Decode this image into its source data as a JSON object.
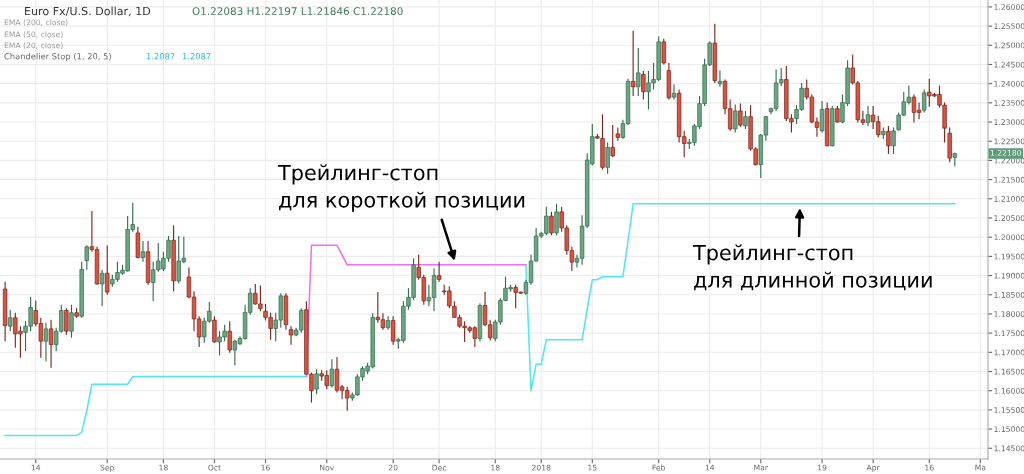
{
  "chart_data": {
    "type": "candlestick",
    "title": "Euro Fx/U.S. Dollar, 1D",
    "categories": [
      null,
      null,
      null,
      null,
      null,
      null,
      "14",
      null,
      null,
      null,
      null,
      null,
      null,
      null,
      null,
      null,
      null,
      null,
      null,
      null,
      "Sep",
      null,
      null,
      null,
      null,
      null,
      null,
      null,
      null,
      null,
      null,
      "18",
      null,
      null,
      null,
      null,
      null,
      null,
      null,
      null,
      null,
      "Oct",
      null,
      null,
      null,
      null,
      null,
      null,
      null,
      null,
      null,
      "16",
      null,
      null,
      null,
      null,
      null,
      null,
      null,
      null,
      null,
      null,
      null,
      "Nov",
      null,
      null,
      null,
      null,
      null,
      null,
      null,
      null,
      null,
      null,
      null,
      null,
      "20",
      null,
      null,
      null,
      null,
      null,
      null,
      null,
      null,
      "Dec",
      null,
      null,
      null,
      null,
      null,
      null,
      null,
      null,
      null,
      null,
      "18",
      null,
      null,
      null,
      null,
      null,
      null,
      null,
      null,
      "2018",
      null,
      null,
      null,
      null,
      null,
      null,
      null,
      null,
      null,
      "15",
      null,
      null,
      null,
      null,
      null,
      null,
      null,
      null,
      null,
      null,
      null,
      null,
      "Feb",
      null,
      null,
      null,
      null,
      null,
      null,
      null,
      null,
      null,
      "14",
      null,
      null,
      null,
      null,
      null,
      null,
      null,
      null,
      null,
      "Mar",
      null,
      null,
      null,
      null,
      null,
      null,
      null,
      null,
      null,
      null,
      null,
      "19",
      null,
      null,
      null,
      null,
      null,
      null,
      null,
      null,
      null,
      "Apr",
      null,
      null,
      null,
      null,
      null,
      null,
      null,
      null,
      null,
      null,
      "16",
      null,
      null,
      null,
      null,
      null,
      null,
      null,
      null,
      null,
      "Ma",
      null
    ],
    "ohlc": [
      [
        1.1865,
        1.1884,
        1.1729,
        1.177
      ],
      [
        1.1768,
        1.1811,
        1.1755,
        1.179
      ],
      [
        1.179,
        1.1803,
        1.1712,
        1.1748
      ],
      [
        1.1755,
        1.1768,
        1.1686,
        1.1748
      ],
      [
        1.1752,
        1.1781,
        1.1703,
        1.1768
      ],
      [
        1.1768,
        1.1844,
        1.1755,
        1.1817
      ],
      [
        1.1809,
        1.1835,
        1.1768,
        1.1774
      ],
      [
        1.1775,
        1.179,
        1.1686,
        1.1729
      ],
      [
        1.1729,
        1.1777,
        1.1677,
        1.1761
      ],
      [
        1.1761,
        1.1785,
        1.166,
        1.172
      ],
      [
        1.172,
        1.1764,
        1.1703,
        1.1755
      ],
      [
        1.1755,
        1.1824,
        1.1751,
        1.1809
      ],
      [
        1.1809,
        1.1815,
        1.1746,
        1.1755
      ],
      [
        1.1755,
        1.1824,
        1.1738,
        1.1803
      ],
      [
        1.1803,
        1.1815,
        1.179,
        1.1794
      ],
      [
        1.1794,
        1.1936,
        1.179,
        1.1916
      ],
      [
        1.1939,
        1.1979,
        1.1915,
        1.1975
      ],
      [
        1.1975,
        1.2068,
        1.1962,
        1.1968
      ],
      [
        1.1968,
        1.1975,
        1.1876,
        1.1878
      ],
      [
        1.1878,
        1.1915,
        1.182,
        1.1906
      ],
      [
        1.1906,
        1.1978,
        1.185,
        1.1857
      ],
      [
        1.1878,
        1.1902,
        1.1871,
        1.189
      ],
      [
        1.189,
        1.1936,
        1.1884,
        1.1908
      ],
      [
        1.1906,
        1.1928,
        1.1902,
        1.1914
      ],
      [
        1.1912,
        1.2055,
        1.191,
        1.202
      ],
      [
        1.202,
        1.209,
        1.2014,
        1.2033
      ],
      [
        1.2011,
        1.2027,
        1.1945,
        1.1947
      ],
      [
        1.1947,
        1.199,
        1.1936,
        1.1962
      ],
      [
        1.1962,
        1.199,
        1.1876,
        1.1882
      ],
      [
        1.1882,
        1.1936,
        1.1834,
        1.1915
      ],
      [
        1.1915,
        1.1985,
        1.191,
        1.1938
      ],
      [
        1.1917,
        1.1962,
        1.1912,
        1.1945
      ],
      [
        1.1945,
        1.2003,
        1.1936,
        1.1992
      ],
      [
        1.1992,
        1.2031,
        1.1859,
        1.1886
      ],
      [
        1.1886,
        1.2003,
        1.188,
        1.1938
      ],
      [
        1.1936,
        1.2001,
        1.1932,
        1.1945
      ],
      [
        1.1896,
        1.1921,
        1.1841,
        1.1844
      ],
      [
        1.1844,
        1.1859,
        1.1755,
        1.1787
      ],
      [
        1.1787,
        1.1794,
        1.1714,
        1.174
      ],
      [
        1.174,
        1.179,
        1.1725,
        1.1781
      ],
      [
        1.1781,
        1.1831,
        1.1777,
        1.1807
      ],
      [
        1.1784,
        1.1794,
        1.1725,
        1.1727
      ],
      [
        1.1727,
        1.1755,
        1.1692,
        1.174
      ],
      [
        1.174,
        1.1772,
        1.1729,
        1.1755
      ],
      [
        1.1755,
        1.1781,
        1.1699,
        1.1706
      ],
      [
        1.1706,
        1.1733,
        1.1666,
        1.1729
      ],
      [
        1.1722,
        1.1742,
        1.172,
        1.1736
      ],
      [
        1.1736,
        1.1824,
        1.1733,
        1.1804
      ],
      [
        1.1804,
        1.1867,
        1.1798,
        1.1854
      ],
      [
        1.1854,
        1.1878,
        1.1824,
        1.1826
      ],
      [
        1.1826,
        1.1874,
        1.1807,
        1.1814
      ],
      [
        1.1807,
        1.1826,
        1.1783,
        1.1791
      ],
      [
        1.1791,
        1.1803,
        1.1733,
        1.1762
      ],
      [
        1.1762,
        1.1803,
        1.1729,
        1.1784
      ],
      [
        1.1784,
        1.1854,
        1.1764,
        1.1847
      ],
      [
        1.1847,
        1.1854,
        1.1759,
        1.1772
      ],
      [
        1.1759,
        1.1768,
        1.172,
        1.1745
      ],
      [
        1.1745,
        1.1764,
        1.1742,
        1.1758
      ],
      [
        1.1758,
        1.1815,
        1.1751,
        1.1809
      ],
      [
        1.1811,
        1.1833,
        1.1643,
        1.1643
      ],
      [
        1.1643,
        1.1647,
        1.1569,
        1.16
      ],
      [
        1.1604,
        1.1656,
        1.1591,
        1.1644
      ],
      [
        1.1644,
        1.1653,
        1.1626,
        1.1638
      ],
      [
        1.164,
        1.1653,
        1.1604,
        1.1613
      ],
      [
        1.1613,
        1.1682,
        1.1608,
        1.1656
      ],
      [
        1.1656,
        1.1688,
        1.1595,
        1.1601
      ],
      [
        1.161,
        1.1615,
        1.1578,
        1.1601
      ],
      [
        1.1601,
        1.161,
        1.1548,
        1.1581
      ],
      [
        1.1581,
        1.1595,
        1.1574,
        1.1589
      ],
      [
        1.1589,
        1.1643,
        1.1587,
        1.1636
      ],
      [
        1.1636,
        1.1664,
        1.1626,
        1.1658
      ],
      [
        1.1651,
        1.1673,
        1.1643,
        1.1664
      ],
      [
        1.1662,
        1.1802,
        1.1658,
        1.1791
      ],
      [
        1.1791,
        1.1857,
        1.1777,
        1.1785
      ],
      [
        1.1785,
        1.1802,
        1.1759,
        1.1764
      ],
      [
        1.1764,
        1.1794,
        1.1759,
        1.1783
      ],
      [
        1.1783,
        1.1794,
        1.172,
        1.1729
      ],
      [
        1.1729,
        1.1738,
        1.1709,
        1.1733
      ],
      [
        1.1731,
        1.1833,
        1.1725,
        1.182
      ],
      [
        1.182,
        1.1867,
        1.1811,
        1.1843
      ],
      [
        1.1843,
        1.1945,
        1.1837,
        1.1928
      ],
      [
        1.1921,
        1.1955,
        1.1889,
        1.1895
      ],
      [
        1.1895,
        1.1902,
        1.1824,
        1.1834
      ],
      [
        1.1834,
        1.1876,
        1.182,
        1.1843
      ],
      [
        1.1843,
        1.1919,
        1.1807,
        1.19
      ],
      [
        1.19,
        1.1936,
        1.1884,
        1.189
      ],
      [
        1.186,
        1.1876,
        1.185,
        1.1858
      ],
      [
        1.186,
        1.1872,
        1.1815,
        1.1821
      ],
      [
        1.182,
        1.1833,
        1.179,
        1.1791
      ],
      [
        1.1791,
        1.1798,
        1.1764,
        1.1768
      ],
      [
        1.1768,
        1.1781,
        1.1727,
        1.1764
      ],
      [
        1.1764,
        1.1768,
        1.1751,
        1.1757
      ],
      [
        1.1764,
        1.1768,
        1.1714,
        1.1736
      ],
      [
        1.1736,
        1.1828,
        1.1729,
        1.1822
      ],
      [
        1.1822,
        1.1858,
        1.1768,
        1.1772
      ],
      [
        1.1772,
        1.1785,
        1.1731,
        1.1738
      ],
      [
        1.1736,
        1.1785,
        1.1729,
        1.1779
      ],
      [
        1.1779,
        1.1841,
        1.1772,
        1.1835
      ],
      [
        1.1835,
        1.1897,
        1.1833,
        1.1867
      ],
      [
        1.1865,
        1.1876,
        1.1858,
        1.1869
      ],
      [
        1.1869,
        1.1876,
        1.1815,
        1.1856
      ],
      [
        1.1857,
        1.1858,
        1.1852,
        1.1854
      ],
      [
        1.1854,
        1.1889,
        1.185,
        1.1882
      ],
      [
        1.1882,
        1.1955,
        1.1876,
        1.1938
      ],
      [
        1.1938,
        1.2024,
        1.1936,
        1.2003
      ],
      [
        1.2003,
        1.2014,
        1.1997,
        1.201
      ],
      [
        1.201,
        1.2079,
        1.2005,
        1.2055
      ],
      [
        1.2055,
        1.2066,
        1.2005,
        1.2011
      ],
      [
        1.2011,
        1.2087,
        1.2005,
        1.2066
      ],
      [
        1.2066,
        1.2079,
        1.2014,
        1.2024
      ],
      [
        1.2024,
        1.2031,
        1.1954,
        1.1965
      ],
      [
        1.1965,
        1.1975,
        1.1912,
        1.1935
      ],
      [
        1.1935,
        1.1954,
        1.1921,
        1.1945
      ],
      [
        1.1945,
        1.2057,
        1.1928,
        1.2029
      ],
      [
        1.2029,
        1.2219,
        1.2023,
        1.2201
      ],
      [
        1.2191,
        1.2295,
        1.2187,
        1.2262
      ],
      [
        1.2262,
        1.2269,
        1.2256,
        1.2258
      ],
      [
        1.2257,
        1.232,
        1.2176,
        1.2182
      ],
      [
        1.2182,
        1.2247,
        1.2165,
        1.2234
      ],
      [
        1.2234,
        1.2292,
        1.2208,
        1.2212
      ],
      [
        1.2269,
        1.2286,
        1.2251,
        1.226
      ],
      [
        1.226,
        1.2306,
        1.2256,
        1.2296
      ],
      [
        1.2296,
        1.2413,
        1.2292,
        1.2406
      ],
      [
        1.2406,
        1.2538,
        1.2368,
        1.2392
      ],
      [
        1.2392,
        1.2493,
        1.2368,
        1.2428
      ],
      [
        1.2424,
        1.2433,
        1.2359,
        1.2379
      ],
      [
        1.2379,
        1.2433,
        1.2333,
        1.2402
      ],
      [
        1.2402,
        1.2454,
        1.2385,
        1.2411
      ],
      [
        1.2411,
        1.2523,
        1.2407,
        1.2509
      ],
      [
        1.2509,
        1.2517,
        1.245,
        1.2454
      ],
      [
        1.2434,
        1.2454,
        1.2359,
        1.2363
      ],
      [
        1.2365,
        1.2398,
        1.2359,
        1.2375
      ],
      [
        1.2375,
        1.2385,
        1.2247,
        1.2262
      ],
      [
        1.2262,
        1.2277,
        1.2208,
        1.2244
      ],
      [
        1.2244,
        1.2256,
        1.223,
        1.2247
      ],
      [
        1.2247,
        1.2295,
        1.2238,
        1.229
      ],
      [
        1.2288,
        1.2368,
        1.2282,
        1.2348
      ],
      [
        1.2348,
        1.2465,
        1.2342,
        1.2449
      ],
      [
        1.2449,
        1.251,
        1.2446,
        1.2506
      ],
      [
        1.2506,
        1.2556,
        1.2402,
        1.2408
      ],
      [
        1.24,
        1.2434,
        1.2392,
        1.2406
      ],
      [
        1.2406,
        1.2411,
        1.232,
        1.2335
      ],
      [
        1.2335,
        1.2359,
        1.2277,
        1.2282
      ],
      [
        1.2282,
        1.2346,
        1.2273,
        1.2329
      ],
      [
        1.2329,
        1.2348,
        1.2288,
        1.2292
      ],
      [
        1.229,
        1.2329,
        1.2282,
        1.2314
      ],
      [
        1.2314,
        1.2344,
        1.2225,
        1.223
      ],
      [
        1.223,
        1.2234,
        1.2187,
        1.2189
      ],
      [
        1.2189,
        1.2269,
        1.2154,
        1.2266
      ],
      [
        1.2266,
        1.2316,
        1.2251,
        1.2314
      ],
      [
        1.2327,
        1.2338,
        1.232,
        1.2335
      ],
      [
        1.2335,
        1.2437,
        1.2329,
        1.2402
      ],
      [
        1.2402,
        1.2441,
        1.2394,
        1.2411
      ],
      [
        1.2411,
        1.2446,
        1.2303,
        1.2309
      ],
      [
        1.2309,
        1.232,
        1.2273,
        1.23
      ],
      [
        1.2309,
        1.2344,
        1.2295,
        1.2333
      ],
      [
        1.2333,
        1.2402,
        1.2329,
        1.2388
      ],
      [
        1.2388,
        1.2411,
        1.2359,
        1.2365
      ],
      [
        1.2365,
        1.2372,
        1.2297,
        1.23
      ],
      [
        1.23,
        1.2312,
        1.2262,
        1.2286
      ],
      [
        1.2277,
        1.2355,
        1.2273,
        1.2333
      ],
      [
        1.2335,
        1.2351,
        1.2237,
        1.2238
      ],
      [
        1.2238,
        1.2342,
        1.2237,
        1.2335
      ],
      [
        1.2335,
        1.2342,
        1.2299,
        1.23
      ],
      [
        1.23,
        1.2372,
        1.2297,
        1.2351
      ],
      [
        1.2348,
        1.2461,
        1.2342,
        1.2441
      ],
      [
        1.2441,
        1.2476,
        1.2398,
        1.2402
      ],
      [
        1.2402,
        1.2407,
        1.2299,
        1.2306
      ],
      [
        1.2306,
        1.2329,
        1.2292,
        1.2299
      ],
      [
        1.2299,
        1.2342,
        1.229,
        1.2319
      ],
      [
        1.2318,
        1.2342,
        1.2282,
        1.2301
      ],
      [
        1.2301,
        1.2316,
        1.226,
        1.2267
      ],
      [
        1.2267,
        1.2286,
        1.2256,
        1.2276
      ],
      [
        1.2276,
        1.229,
        1.2217,
        1.2238
      ],
      [
        1.2238,
        1.2286,
        1.2217,
        1.2277
      ],
      [
        1.228,
        1.2325,
        1.2277,
        1.2318
      ],
      [
        1.2318,
        1.2378,
        1.2316,
        1.2353
      ],
      [
        1.2351,
        1.2395,
        1.2346,
        1.2365
      ],
      [
        1.2365,
        1.2372,
        1.2299,
        1.2325
      ],
      [
        1.2331,
        1.2351,
        1.2307,
        1.2325
      ],
      [
        1.2331,
        1.2385,
        1.2325,
        1.2376
      ],
      [
        1.2378,
        1.2413,
        1.234,
        1.2368
      ],
      [
        1.2372,
        1.2376,
        1.2365,
        1.2368
      ],
      [
        1.2372,
        1.2395,
        1.2338,
        1.2344
      ],
      [
        1.2344,
        1.2351,
        1.2247,
        1.2284
      ],
      [
        1.2271,
        1.2286,
        1.2195,
        1.2206
      ],
      [
        1.2208,
        1.222,
        1.2185,
        1.2218
      ],
      null,
      null,
      null,
      null,
      null,
      null
    ],
    "series": [
      {
        "type": "line",
        "color": "#4fe6f0",
        "values": [
          1.1483,
          1.1483,
          1.1483,
          1.1483,
          1.1483,
          1.1483,
          1.1483,
          1.1483,
          1.1483,
          1.1483,
          1.1483,
          1.1483,
          1.1483,
          1.1483,
          1.1483,
          1.1492,
          1.1548,
          1.1617,
          1.1617,
          1.1617,
          1.1617,
          1.1617,
          1.1617,
          1.1617,
          1.1617,
          1.1637,
          1.1637,
          1.1637,
          1.1637,
          1.1637,
          1.1637,
          1.1637,
          1.1637,
          1.1637,
          1.1637,
          1.1637,
          1.1637,
          1.1637,
          1.1637,
          1.1637,
          1.1637,
          1.1637,
          1.1637,
          1.1637,
          1.1637,
          1.1637,
          1.1637,
          1.1637,
          1.1637,
          1.1637,
          1.1637,
          1.1637,
          1.1637,
          1.1637,
          1.1637,
          1.1637,
          1.1637,
          1.1637,
          1.1637,
          1.1637,
          null,
          null,
          null,
          null,
          null,
          null,
          null,
          null,
          null,
          null,
          null,
          null,
          null,
          null,
          null,
          null,
          null,
          null,
          null,
          null,
          null,
          null,
          null,
          null,
          null,
          null,
          null,
          null,
          null,
          null,
          null,
          null,
          null,
          null,
          null,
          null,
          null,
          null,
          null,
          null,
          null,
          null,
          1.1928,
          1.16,
          1.1669,
          1.1669,
          1.1733,
          1.1733,
          1.1733,
          1.1733,
          1.1733,
          1.1733,
          1.1733,
          1.1733,
          1.1811,
          1.1889,
          1.1889,
          1.1897,
          1.1897,
          1.1897,
          1.1897,
          1.1897,
          1.199,
          1.2087,
          1.2087,
          1.2087,
          1.2087,
          1.2087,
          1.2087,
          1.2087,
          1.2087,
          1.2087,
          1.2087,
          1.2087,
          1.2087,
          1.2087,
          1.2087,
          1.2087,
          1.2087,
          1.2087,
          1.2087,
          1.2087,
          1.2087,
          1.2087,
          1.2087,
          1.2087,
          1.2087,
          1.2087,
          1.2087,
          1.2087,
          1.2087,
          1.2087,
          1.2087,
          1.2087,
          1.2087,
          1.2087,
          1.2087,
          1.2087,
          1.2087,
          1.2087,
          1.2087,
          1.2087,
          1.2087,
          1.2087,
          1.2087,
          1.2087,
          1.2087,
          1.2087,
          1.2087,
          1.2087,
          1.2087,
          1.2087,
          1.2087,
          1.2087,
          1.2087,
          1.2087,
          1.2087,
          1.2087,
          1.2087,
          1.2087,
          1.2087,
          1.2087,
          1.2087,
          1.2087,
          1.2087,
          1.2087,
          1.2087,
          null,
          null,
          null,
          null,
          null,
          null
        ]
      },
      {
        "type": "line",
        "color": "#f36cf3",
        "values": [
          null,
          null,
          null,
          null,
          null,
          null,
          null,
          null,
          null,
          null,
          null,
          null,
          null,
          null,
          null,
          null,
          null,
          null,
          null,
          null,
          null,
          null,
          null,
          null,
          null,
          null,
          null,
          null,
          null,
          null,
          null,
          null,
          null,
          null,
          null,
          null,
          null,
          null,
          null,
          null,
          null,
          null,
          null,
          null,
          null,
          null,
          null,
          null,
          null,
          null,
          null,
          null,
          null,
          null,
          null,
          null,
          null,
          null,
          null,
          1.1637,
          1.1979,
          1.1979,
          1.1979,
          1.1979,
          1.1979,
          1.1979,
          1.1953,
          1.1928,
          1.1928,
          1.1928,
          1.1928,
          1.1928,
          1.1928,
          1.1928,
          1.1928,
          1.1928,
          1.1928,
          1.1928,
          1.1928,
          1.1928,
          1.1928,
          1.1928,
          1.1928,
          1.1928,
          1.1928,
          1.1928,
          1.1928,
          1.1928,
          1.1928,
          1.1928,
          1.1928,
          1.1928,
          1.1928,
          1.1928,
          1.1928,
          1.1928,
          1.1928,
          1.1928,
          1.1928,
          1.1928,
          1.1928,
          1.1928,
          1.1928,
          null,
          null,
          null,
          null,
          null,
          null,
          null,
          null,
          null,
          null,
          null,
          null,
          null,
          null,
          null,
          null,
          null,
          null,
          null,
          null,
          null,
          null,
          null,
          null,
          null,
          null,
          null,
          null,
          null,
          null,
          null,
          null,
          null,
          null,
          null,
          null,
          null,
          null,
          null,
          null,
          null,
          null,
          null,
          null,
          null,
          null,
          null,
          null,
          null,
          null,
          null,
          null,
          null,
          null,
          null,
          null,
          null,
          null,
          null,
          null,
          null,
          null,
          null,
          null,
          null,
          null,
          null,
          null,
          null,
          null,
          null,
          null,
          null,
          null,
          null,
          null,
          null,
          null,
          null,
          null,
          null,
          null,
          null,
          null,
          null,
          null,
          null,
          null,
          null,
          null
        ]
      }
    ],
    "ylim": [
      1.1422,
      1.2618
    ],
    "yticks": [
      {
        "value": 1.145,
        "label": "1.14500"
      },
      {
        "value": 1.15,
        "label": "1.15000"
      },
      {
        "value": 1.155,
        "label": "1.15500"
      },
      {
        "value": 1.16,
        "label": "1.16000"
      },
      {
        "value": 1.165,
        "label": "1.16500"
      },
      {
        "value": 1.17,
        "label": "1.17000"
      },
      {
        "value": 1.175,
        "label": "1.17500"
      },
      {
        "value": 1.18,
        "label": "1.18000"
      },
      {
        "value": 1.185,
        "label": "1.18500"
      },
      {
        "value": 1.19,
        "label": "1.19000"
      },
      {
        "value": 1.195,
        "label": "1.19500"
      },
      {
        "value": 1.2,
        "label": "1.20000"
      },
      {
        "value": 1.205,
        "label": "1.20500"
      },
      {
        "value": 1.21,
        "label": "1.21000"
      },
      {
        "value": 1.215,
        "label": "1.21500"
      },
      {
        "value": 1.22,
        "label": "1.22000"
      },
      {
        "value": 1.225,
        "label": "1.22500"
      },
      {
        "value": 1.23,
        "label": "1.23000"
      },
      {
        "value": 1.235,
        "label": "1.23500"
      },
      {
        "value": 1.24,
        "label": "1.24000"
      },
      {
        "value": 1.245,
        "label": "1.24500"
      },
      {
        "value": 1.25,
        "label": "1.25000"
      },
      {
        "value": 1.255,
        "label": "1.25500"
      },
      {
        "value": 1.26,
        "label": "1.26000"
      }
    ],
    "grid": true,
    "annotations": [
      "O1.22083 H1.22197 L1.21846 C1.22180",
      "EMA (200, close)",
      "EMA (50, close)",
      "EMA (20, close)",
      "Chandelier Stop (1, 20, 5)",
      "1.2087",
      "1.2087",
      {
        "text": "1.22180",
        "y": 1.2218
      },
      {
        "text": "Трейлинг-стоп\nдля короткой позиции",
        "y": 1.1928
      },
      {
        "text": "Трейлинг-стоп\nдля длинной позиции",
        "y": 1.2087
      }
    ]
  }
}
